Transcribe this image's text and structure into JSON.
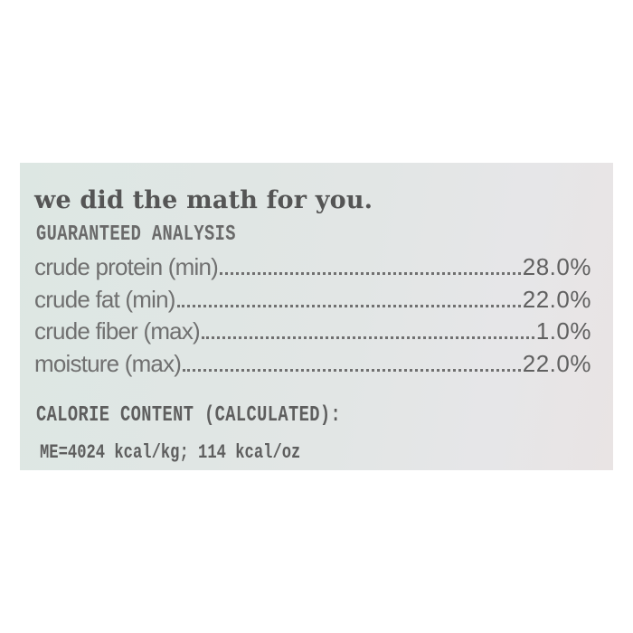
{
  "label": {
    "title": "we did the math for you.",
    "analysis_heading": "GUARANTEED ANALYSIS",
    "rows": [
      {
        "name": "crude protein (min)",
        "value": "28.0%"
      },
      {
        "name": "crude fat (min)",
        "value": "22.0%"
      },
      {
        "name": "crude fiber (max)",
        "value": "1.0%"
      },
      {
        "name": "moisture (max)",
        "value": "22.0%"
      }
    ],
    "calorie_heading": "CALORIE CONTENT (CALCULATED):",
    "calorie_value": "ME=4024 kcal/kg; 114 kcal/oz"
  }
}
